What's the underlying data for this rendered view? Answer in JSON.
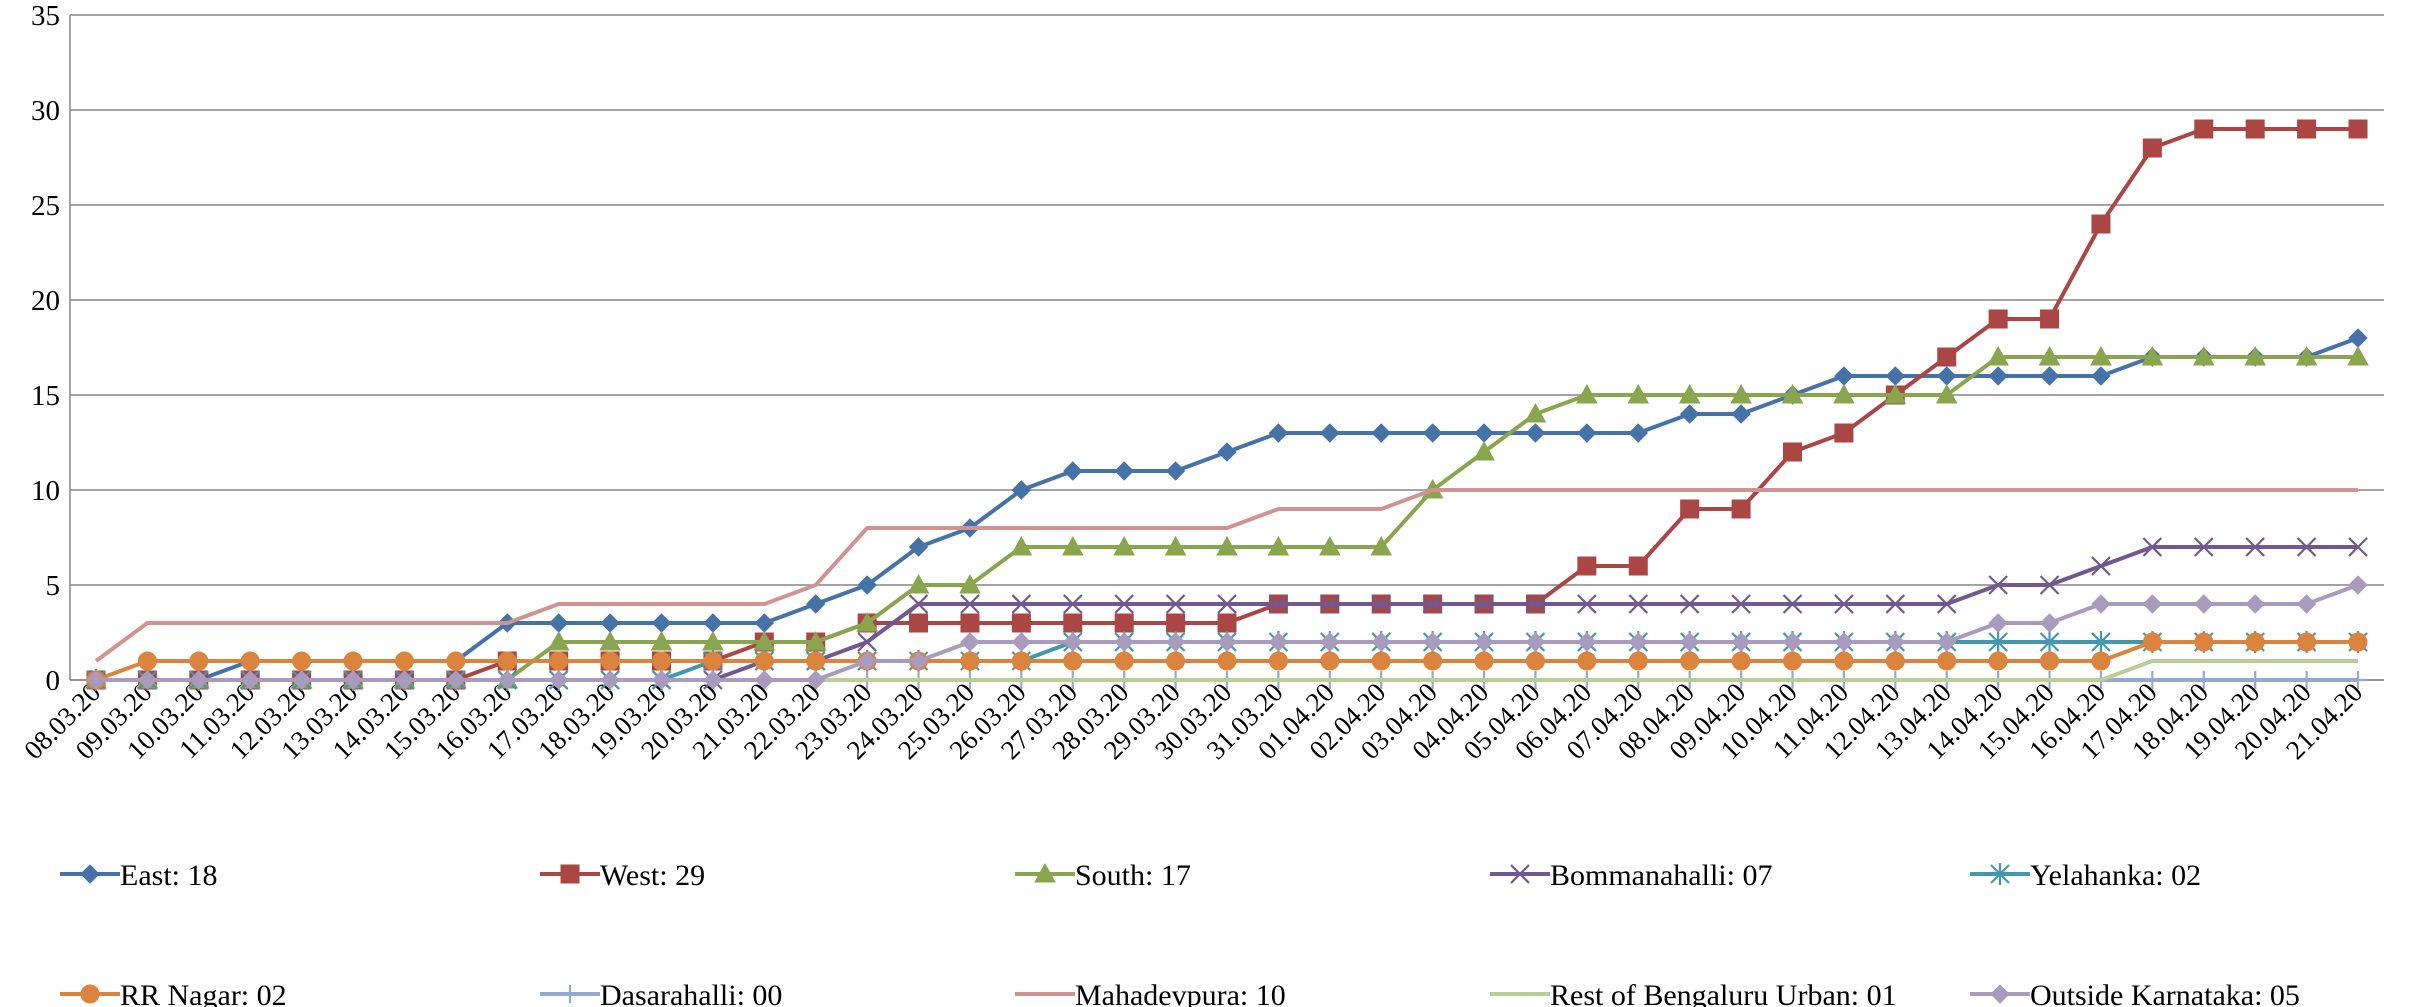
{
  "chart_data": {
    "type": "line",
    "title": "",
    "xlabel": "",
    "ylabel": "",
    "ylim": [
      0,
      35
    ],
    "yticks": [
      0,
      5,
      10,
      15,
      20,
      25,
      30,
      35
    ],
    "grid": true,
    "legend_position": "bottom",
    "categories": [
      "08.03.20",
      "09.03.20",
      "10.03.20",
      "11.03.20",
      "12.03.20",
      "13.03.20",
      "14.03.20",
      "15.03.20",
      "16.03.20",
      "17.03.20",
      "18.03.20",
      "19.03.20",
      "20.03.20",
      "21.03.20",
      "22.03.20",
      "23.03.20",
      "24.03.20",
      "25.03.20",
      "26.03.20",
      "27.03.20",
      "28.03.20",
      "29.03.20",
      "30.03.20",
      "31.03.20",
      "01.04.20",
      "02.04.20",
      "03.04.20",
      "04.04.20",
      "05.04.20",
      "06.04.20",
      "07.04.20",
      "08.04.20",
      "09.04.20",
      "10.04.20",
      "11.04.20",
      "12.04.20",
      "13.04.20",
      "14.04.20",
      "15.04.20",
      "16.04.20",
      "17.04.20",
      "18.04.20",
      "19.04.20",
      "20.04.20",
      "21.04.20"
    ],
    "series": [
      {
        "name": "East: 18",
        "color": "#4572A7",
        "marker": "diamond",
        "values": [
          0,
          0,
          0,
          1,
          1,
          1,
          1,
          1,
          3,
          3,
          3,
          3,
          3,
          3,
          4,
          5,
          7,
          8,
          10,
          11,
          11,
          11,
          12,
          13,
          13,
          13,
          13,
          13,
          13,
          13,
          13,
          14,
          14,
          15,
          16,
          16,
          16,
          16,
          16,
          16,
          17,
          17,
          17,
          17,
          18
        ]
      },
      {
        "name": "West: 29",
        "color": "#AA4643",
        "marker": "square",
        "values": [
          0,
          0,
          0,
          0,
          0,
          0,
          0,
          0,
          1,
          1,
          1,
          1,
          1,
          2,
          2,
          3,
          3,
          3,
          3,
          3,
          3,
          3,
          3,
          4,
          4,
          4,
          4,
          4,
          4,
          6,
          6,
          9,
          9,
          12,
          13,
          15,
          17,
          19,
          19,
          24,
          28,
          29,
          29,
          29,
          29
        ]
      },
      {
        "name": "South: 17",
        "color": "#89A54E",
        "marker": "triangle",
        "values": [
          0,
          0,
          0,
          0,
          0,
          0,
          0,
          0,
          0,
          2,
          2,
          2,
          2,
          2,
          2,
          3,
          5,
          5,
          7,
          7,
          7,
          7,
          7,
          7,
          7,
          7,
          10,
          12,
          14,
          15,
          15,
          15,
          15,
          15,
          15,
          15,
          15,
          17,
          17,
          17,
          17,
          17,
          17,
          17,
          17
        ]
      },
      {
        "name": "Bommanahalli: 07",
        "color": "#71588F",
        "marker": "x",
        "values": [
          0,
          0,
          0,
          0,
          0,
          0,
          0,
          0,
          0,
          0,
          0,
          0,
          0,
          1,
          1,
          2,
          4,
          4,
          4,
          4,
          4,
          4,
          4,
          4,
          4,
          4,
          4,
          4,
          4,
          4,
          4,
          4,
          4,
          4,
          4,
          4,
          4,
          5,
          5,
          6,
          7,
          7,
          7,
          7,
          7
        ]
      },
      {
        "name": "Yelahanka: 02",
        "color": "#4198AF",
        "marker": "star",
        "values": [
          0,
          0,
          0,
          0,
          0,
          0,
          0,
          0,
          0,
          0,
          0,
          0,
          1,
          1,
          1,
          1,
          1,
          1,
          1,
          2,
          2,
          2,
          2,
          2,
          2,
          2,
          2,
          2,
          2,
          2,
          2,
          2,
          2,
          2,
          2,
          2,
          2,
          2,
          2,
          2,
          2,
          2,
          2,
          2,
          2
        ]
      },
      {
        "name": "RR Nagar: 02",
        "color": "#DB843D",
        "marker": "circle",
        "values": [
          0,
          1,
          1,
          1,
          1,
          1,
          1,
          1,
          1,
          1,
          1,
          1,
          1,
          1,
          1,
          1,
          1,
          1,
          1,
          1,
          1,
          1,
          1,
          1,
          1,
          1,
          1,
          1,
          1,
          1,
          1,
          1,
          1,
          1,
          1,
          1,
          1,
          1,
          1,
          1,
          2,
          2,
          2,
          2,
          2
        ]
      },
      {
        "name": "Dasarahalli: 00",
        "color": "#93A9CF",
        "marker": "plus",
        "values": [
          0,
          0,
          0,
          0,
          0,
          0,
          0,
          0,
          0,
          0,
          0,
          0,
          0,
          0,
          0,
          0,
          0,
          0,
          0,
          0,
          0,
          0,
          0,
          0,
          0,
          0,
          0,
          0,
          0,
          0,
          0,
          0,
          0,
          0,
          0,
          0,
          0,
          0,
          0,
          0,
          0,
          0,
          0,
          0,
          0
        ]
      },
      {
        "name": "Mahadevpura: 10",
        "color": "#D19392",
        "marker": "none",
        "values": [
          1,
          3,
          3,
          3,
          3,
          3,
          3,
          3,
          3,
          4,
          4,
          4,
          4,
          4,
          5,
          8,
          8,
          8,
          8,
          8,
          8,
          8,
          8,
          9,
          9,
          9,
          10,
          10,
          10,
          10,
          10,
          10,
          10,
          10,
          10,
          10,
          10,
          10,
          10,
          10,
          10,
          10,
          10,
          10,
          10
        ]
      },
      {
        "name": "Rest of Bengaluru Urban: 01",
        "color": "#B9CD96",
        "marker": "none",
        "values": [
          0,
          0,
          0,
          0,
          0,
          0,
          0,
          0,
          0,
          0,
          0,
          0,
          0,
          0,
          0,
          0,
          0,
          0,
          0,
          0,
          0,
          0,
          0,
          0,
          0,
          0,
          0,
          0,
          0,
          0,
          0,
          0,
          0,
          0,
          0,
          0,
          0,
          0,
          0,
          0,
          1,
          1,
          1,
          1,
          1
        ]
      },
      {
        "name": "Outside Karnataka: 05",
        "color": "#A99BBD",
        "marker": "diamond",
        "values": [
          0,
          0,
          0,
          0,
          0,
          0,
          0,
          0,
          0,
          0,
          0,
          0,
          0,
          0,
          0,
          1,
          1,
          2,
          2,
          2,
          2,
          2,
          2,
          2,
          2,
          2,
          2,
          2,
          2,
          2,
          2,
          2,
          2,
          2,
          2,
          2,
          2,
          3,
          3,
          4,
          4,
          4,
          4,
          4,
          5
        ]
      }
    ]
  }
}
